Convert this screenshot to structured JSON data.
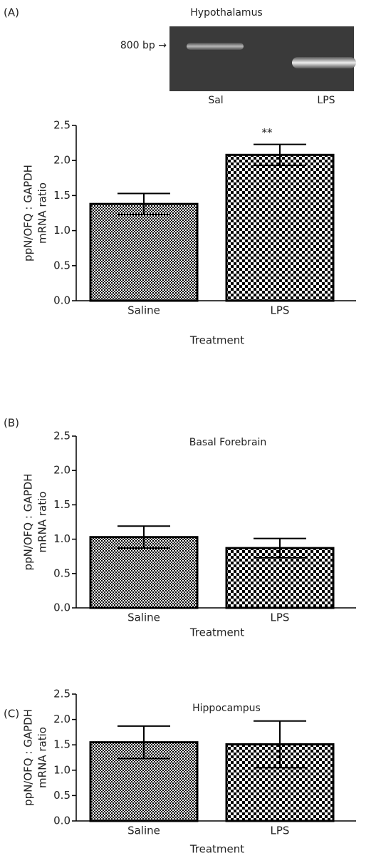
{
  "chart_data": [
    {
      "type": "bar",
      "panel_label": "(A)",
      "title": "Hypothalamus",
      "gel": {
        "marker": "800 bp →",
        "lanes": [
          "Sal",
          "LPS"
        ]
      },
      "categories": [
        "Saline",
        "LPS"
      ],
      "values": [
        1.38,
        2.08
      ],
      "errors": [
        0.15,
        0.15
      ],
      "annotations": [
        null,
        "**"
      ],
      "color": "#000000",
      "xlabel": "Treatment",
      "ylabel": [
        "ppN/OFQ : GAPDH",
        "mRNA ratio"
      ],
      "ylim": [
        0,
        2.5
      ],
      "yticks": [
        {
          "value": 0,
          "label": "0.0"
        },
        0.5,
        {
          "value": 1,
          "label": "1.0"
        },
        1.5,
        {
          "value": 2,
          "label": "2.0"
        },
        2.5
      ]
    },
    {
      "type": "bar",
      "panel_label": "(B)",
      "title": "Basal Forebrain",
      "categories": [
        "Saline",
        "LPS"
      ],
      "values": [
        1.03,
        0.87
      ],
      "errors": [
        0.16,
        0.14
      ],
      "color": "#000000",
      "xlabel": "Treatment",
      "ylabel": [
        "ppN/OFQ : GAPDH",
        "mRNA ratio"
      ],
      "ylim": [
        0,
        2.5
      ],
      "yticks": [
        {
          "value": 0,
          "label": "0.0"
        },
        0.5,
        {
          "value": 1,
          "label": "1.0"
        },
        1.5,
        {
          "value": 2,
          "label": "2.0"
        },
        2.5
      ]
    },
    {
      "type": "bar",
      "panel_label": "(C)",
      "title": "Hippocampus",
      "categories": [
        "Saline",
        "LPS"
      ],
      "values": [
        1.55,
        1.51
      ],
      "errors": [
        0.32,
        0.46
      ],
      "color": "#000000",
      "xlabel": "Treatment",
      "ylabel": [
        "ppN/OFQ : GAPDH",
        "mRNA ratio"
      ],
      "ylim": [
        0,
        2.5
      ],
      "yticks": [
        {
          "value": 0,
          "label": "0.0"
        },
        0.5,
        {
          "value": 1,
          "label": "1.0"
        },
        1.5,
        {
          "value": 2,
          "label": "2.0"
        },
        2.5
      ]
    }
  ]
}
